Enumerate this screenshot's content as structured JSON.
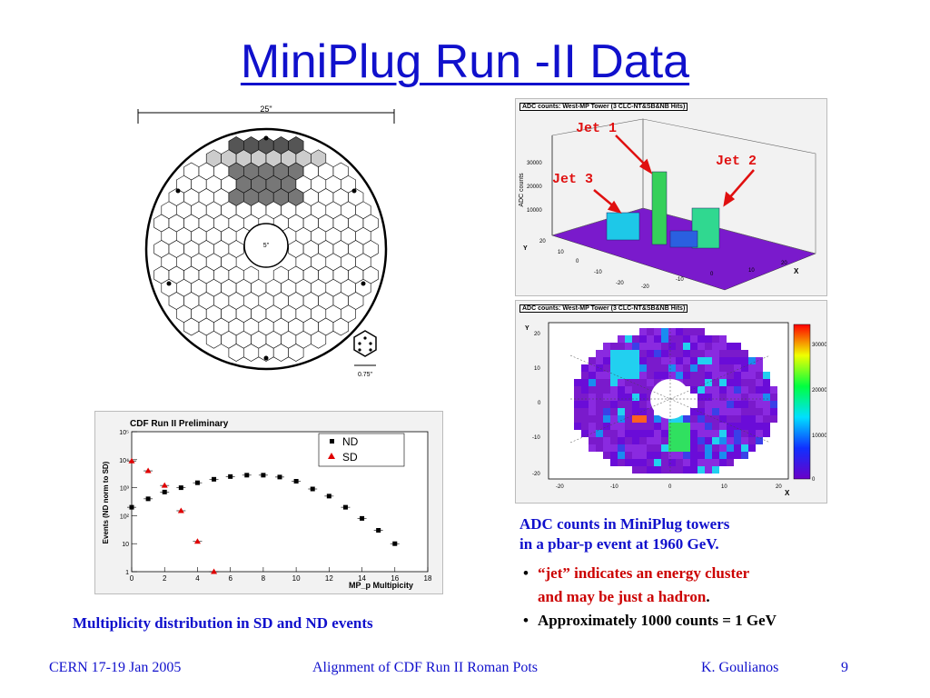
{
  "slide": {
    "title": "MiniPlug Run -II Data",
    "page_number": "9"
  },
  "detector_drawing": {
    "dimension_top": "25\"",
    "dimension_center": "5\"",
    "dimension_hex": "0.75\""
  },
  "lego_plot": {
    "title": "ADC counts: West-MP Tower (3 CLC-NT&SB&NB Hits)",
    "zlabel": "ADC counts",
    "z_ticks": [
      "30000",
      "20000",
      "10000"
    ],
    "y_label": "Y",
    "x_label": "X",
    "y_ticks": [
      "20",
      "10",
      "0",
      "-10",
      "-20"
    ],
    "x_ticks": [
      "-20",
      "-10",
      "0",
      "10",
      "20"
    ],
    "jet_labels": [
      "Jet 1",
      "Jet 2",
      "Jet 3"
    ]
  },
  "map_plot": {
    "title": "ADC counts: West-MP Tower (3 CLC-NT&SB&NB Hits)",
    "y_label": "Y",
    "x_label": "X",
    "x_ticks": [
      "-20",
      "-10",
      "0",
      "10",
      "20"
    ],
    "y_ticks": [
      "20",
      "10",
      "0",
      "-10",
      "-20"
    ],
    "colorbar_ticks": [
      "30000",
      "20000",
      "10000",
      "0"
    ]
  },
  "chart_data": {
    "type": "scatter",
    "title": "CDF Run II Preliminary",
    "xlabel": "MP_p Multipicity",
    "ylabel": "Events (ND norm to SD)",
    "yscale": "log",
    "xlim": [
      0,
      18
    ],
    "ylim": [
      1,
      100000
    ],
    "x_ticks": [
      "0",
      "2",
      "4",
      "6",
      "8",
      "10",
      "12",
      "14",
      "16",
      "18"
    ],
    "y_ticks": [
      "1",
      "10",
      "10²",
      "10³",
      "10⁴",
      "10⁵"
    ],
    "legend_position": "top-right",
    "series": [
      {
        "name": "ND",
        "marker": "square",
        "color": "#000000",
        "x": [
          0,
          1,
          2,
          3,
          4,
          5,
          6,
          7,
          8,
          9,
          10,
          11,
          12,
          13,
          14,
          15,
          16
        ],
        "y": [
          200,
          400,
          700,
          1000,
          1500,
          2000,
          2500,
          2800,
          2800,
          2400,
          1700,
          900,
          500,
          200,
          80,
          30,
          10
        ]
      },
      {
        "name": "SD",
        "marker": "triangle",
        "color": "#e00000",
        "x": [
          0,
          1,
          2,
          3,
          4,
          5
        ],
        "y": [
          9000,
          4000,
          1200,
          150,
          12,
          1
        ]
      }
    ]
  },
  "captions": {
    "adc_line1": "ADC counts in MiniPlug towers",
    "adc_line2": "in a pbar-p event at 1960 GeV.",
    "bullet_char": "•",
    "bullet1_line1": "“jet” indicates an energy cluster",
    "bullet1_line2": "and may be just a hadron",
    "bullet1_period": ".",
    "bullet2": "Approximately 1000 counts = 1 GeV",
    "multiplicity": "Multiplicity distribution in SD and ND events"
  },
  "footer": {
    "left": "CERN 17-19 Jan 2005",
    "center": "Alignment of  CDF Run II Roman Pots",
    "right": "K. Goulianos"
  },
  "colors": {
    "title_blue": "#1010cc",
    "jet_red": "#e01010",
    "bullet_red": "#cc0000"
  }
}
